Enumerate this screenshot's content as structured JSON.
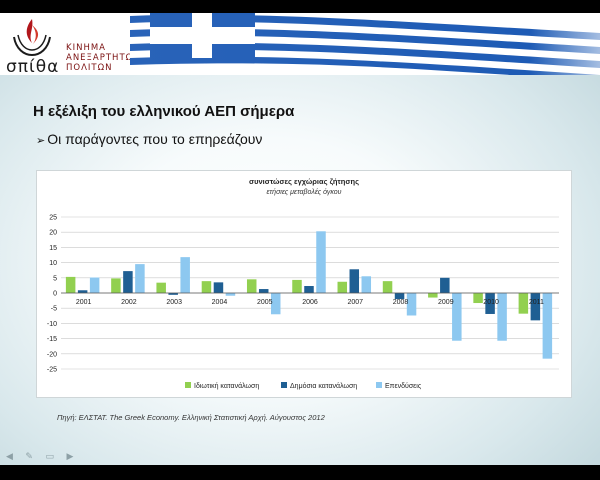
{
  "header": {
    "logo_word": "σπίθα",
    "movement_lines": [
      "ΚΙΝΗΜΑ",
      "ΑΝΕΞΑΡΤΗΤΩΝ",
      "ΠΟΛΙΤΩΝ"
    ],
    "colors": {
      "flag_blue": "#1e5bb5",
      "logo_red": "#b1161b"
    }
  },
  "slide": {
    "title": "Η εξέλιξη του ελληνικού ΑΕΠ σήμερα",
    "bullet_icon": "arrow-bullet-icon",
    "bullet": "Οι παράγοντες που το επηρεάζουν",
    "source": "Πηγή: ΕΛΣΤΑΤ. The Greek Economy. Ελληνική Στατιστική Αρχή. Αύγουστος 2012"
  },
  "chart_data": {
    "type": "bar",
    "title": "συνιστώσες εγχώριας ζήτησης",
    "subtitle": "ετήσιες μεταβολές όγκου",
    "categories": [
      "2001",
      "2002",
      "2003",
      "2004",
      "2005",
      "2006",
      "2007",
      "2008",
      "2009",
      "2010",
      "2011"
    ],
    "series": [
      {
        "name": "Ιδιωτική κατανάλωση",
        "color": "#92d050",
        "values": [
          5.3,
          4.8,
          3.4,
          3.9,
          4.5,
          4.3,
          3.7,
          3.9,
          -1.5,
          -3.3,
          -6.8
        ]
      },
      {
        "name": "Δημόσια κατανάλωση",
        "color": "#1f5f93",
        "values": [
          0.9,
          7.2,
          -0.6,
          3.5,
          1.3,
          2.3,
          7.8,
          -2.0,
          5.0,
          -6.9,
          -9.0
        ]
      },
      {
        "name": "Επενδύσεις",
        "color": "#8dc8f0",
        "values": [
          5.1,
          9.5,
          11.8,
          -0.9,
          -7.0,
          20.3,
          5.5,
          -7.4,
          -15.7,
          -15.7,
          -21.6
        ]
      }
    ],
    "ylim": [
      -25,
      25
    ],
    "yticks": [
      25,
      20,
      15,
      10,
      5,
      0,
      -5,
      -10,
      -15,
      -20,
      -25
    ],
    "grid": true,
    "legend_position": "bottom"
  }
}
